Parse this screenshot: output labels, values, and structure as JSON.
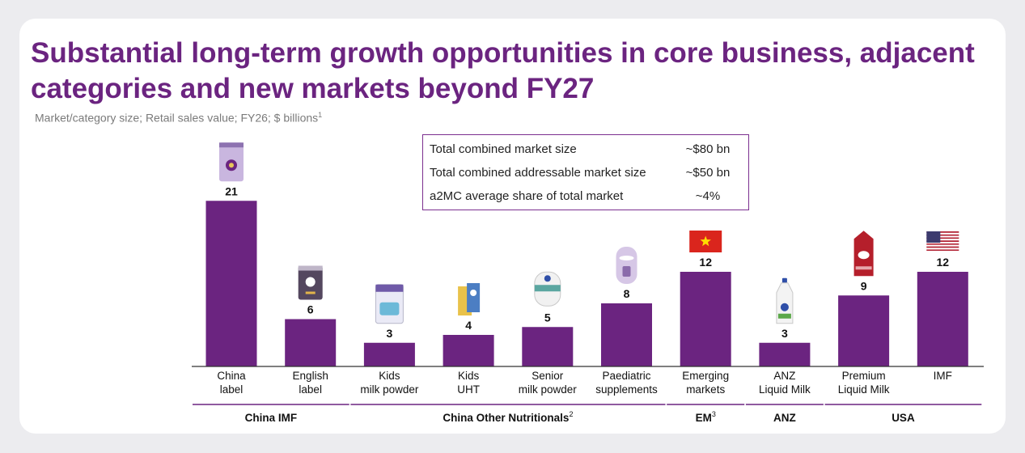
{
  "title": "Substantial long-term growth opportunities in core business, adjacent categories and new markets beyond FY27",
  "subtitle": "Market/category size; Retail sales value; FY26; $ billions",
  "subtitle_footnote": "1",
  "summary": [
    {
      "label": "Total combined market size",
      "value": "~$80 bn"
    },
    {
      "label": "Total combined addressable market size",
      "value": "~$50 bn"
    },
    {
      "label": "a2MC average share of total market",
      "value": "~4%"
    }
  ],
  "chart_data": {
    "type": "bar",
    "categories": [
      [
        "China",
        "label"
      ],
      [
        "English",
        "label"
      ],
      [
        "Kids",
        "milk powder"
      ],
      [
        "Kids",
        "UHT"
      ],
      [
        "Senior",
        "milk powder"
      ],
      [
        "Paediatric",
        "supplements"
      ],
      [
        "Emerging",
        "markets"
      ],
      [
        "ANZ",
        "Liquid Milk"
      ],
      [
        "Premium",
        "Liquid Milk"
      ],
      [
        "IMF"
      ]
    ],
    "values": [
      21,
      6,
      3,
      4,
      5,
      8,
      12,
      3,
      9,
      12
    ],
    "value_labels": [
      "21",
      "6",
      "3",
      "4",
      "5",
      "8",
      "12",
      "3",
      "9",
      "12"
    ],
    "bar_color": "#6b2480",
    "groups": [
      {
        "label": "China IMF",
        "sup": "",
        "from": 0,
        "to": 1
      },
      {
        "label": "China Other Nutritionals",
        "sup": "2",
        "from": 2,
        "to": 5
      },
      {
        "label": "EM",
        "sup": "3",
        "from": 6,
        "to": 6
      },
      {
        "label": "ANZ",
        "sup": "",
        "from": 7,
        "to": 7
      },
      {
        "label": "USA",
        "sup": "",
        "from": 8,
        "to": 9
      }
    ],
    "icons": [
      "china-label-can-icon",
      "english-label-can-icon",
      "kids-milk-powder-icon",
      "kids-uht-icon",
      "senior-milk-powder-icon",
      "paediatric-supplement-icon",
      "vietnam-flag-icon",
      "anz-milk-bottle-icon",
      "premium-milk-carton-icon",
      "usa-flag-icon"
    ]
  },
  "colors": {
    "title": "#6b2480",
    "bar": "#6b2480",
    "group_rule": "#6b2480"
  }
}
